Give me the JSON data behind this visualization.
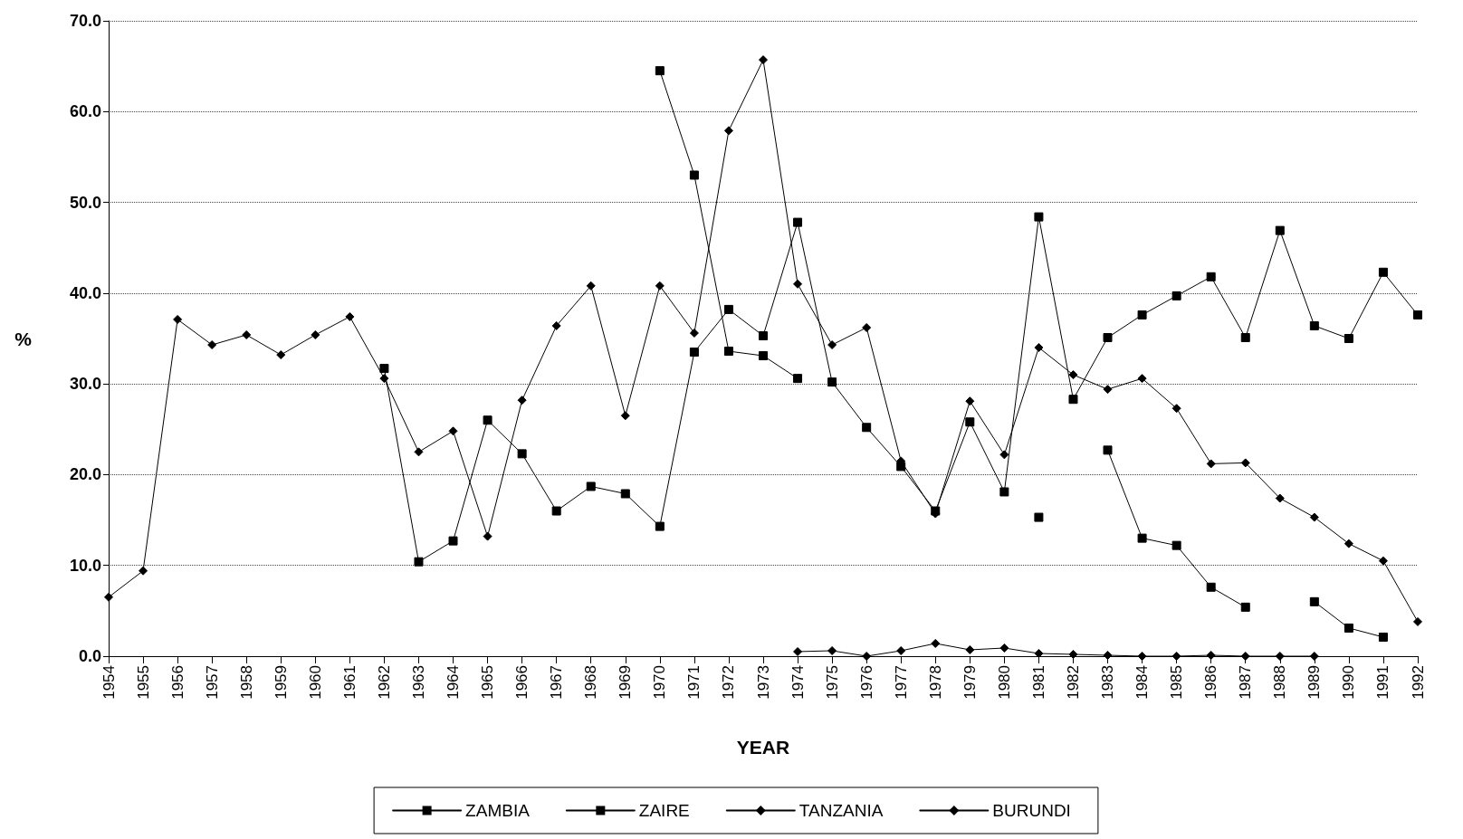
{
  "chart_data": {
    "type": "line",
    "xlabel": "YEAR",
    "ylabel": "%",
    "categories": [
      "1954",
      "1955",
      "1956",
      "1957",
      "1958",
      "1959",
      "1960",
      "1961",
      "1962",
      "1963",
      "1964",
      "1965",
      "1966",
      "1967",
      "1968",
      "1969",
      "1970",
      "1971",
      "1972",
      "1973",
      "1974",
      "1975",
      "1976",
      "1977",
      "1978",
      "1979",
      "1980",
      "1981",
      "1982",
      "1983",
      "1984",
      "1985",
      "1986",
      "1987",
      "1988",
      "1989",
      "1990",
      "1991",
      "1992"
    ],
    "series": [
      {
        "name": "ZAMBIA",
        "color": "#000000",
        "marker": "square",
        "values": [
          null,
          null,
          null,
          null,
          null,
          null,
          null,
          null,
          31.7,
          10.4,
          12.7,
          26.0,
          22.3,
          16.0,
          18.7,
          17.9,
          14.3,
          33.5,
          38.2,
          35.3,
          47.8,
          30.2,
          25.2,
          20.9,
          16.0,
          25.8,
          18.1,
          48.4,
          28.3,
          35.1,
          37.6,
          39.7,
          41.8,
          35.1,
          46.9,
          36.4,
          35.0,
          42.3,
          37.6
        ]
      },
      {
        "name": "ZAIRE",
        "color": "#000000",
        "marker": "square",
        "values": [
          null,
          null,
          null,
          null,
          null,
          null,
          null,
          null,
          null,
          null,
          null,
          null,
          null,
          null,
          null,
          null,
          64.5,
          53.0,
          33.6,
          33.1,
          30.6,
          null,
          null,
          null,
          null,
          null,
          null,
          15.3,
          null,
          22.7,
          13.0,
          12.2,
          7.6,
          5.4,
          null,
          6.0,
          3.1,
          2.1,
          null
        ]
      },
      {
        "name": "TANZANIA",
        "color": "#000000",
        "marker": "diamond",
        "values": [
          null,
          null,
          null,
          null,
          null,
          null,
          null,
          null,
          null,
          null,
          null,
          null,
          null,
          null,
          null,
          null,
          null,
          null,
          null,
          null,
          0.5,
          0.6,
          0.0,
          0.6,
          1.4,
          0.7,
          0.9,
          0.3,
          0.2,
          0.1,
          0.0,
          0.0,
          0.1,
          0.0,
          0.0,
          0.0,
          null,
          null,
          null
        ]
      },
      {
        "name": "BURUNDI",
        "color": "#000000",
        "marker": "diamond",
        "values": [
          6.5,
          9.4,
          37.1,
          34.3,
          35.4,
          33.2,
          35.4,
          37.4,
          30.6,
          22.5,
          24.8,
          13.2,
          28.2,
          36.4,
          40.8,
          26.5,
          40.8,
          35.6,
          57.9,
          65.7,
          41.0,
          34.3,
          36.2,
          21.5,
          15.7,
          28.1,
          22.2,
          34.0,
          31.0,
          29.4,
          30.6,
          27.3,
          21.2,
          21.3,
          17.4,
          15.3,
          12.4,
          10.5,
          3.8
        ]
      }
    ],
    "ylim": [
      0,
      70
    ],
    "yticks": [
      {
        "value": 0,
        "label": "0.0"
      },
      {
        "value": 10,
        "label": "10.0"
      },
      {
        "value": 20,
        "label": "20.0"
      },
      {
        "value": 30,
        "label": "30.0"
      },
      {
        "value": 40,
        "label": "40.0"
      },
      {
        "value": 50,
        "label": "50.0"
      },
      {
        "value": 60,
        "label": "60.0"
      },
      {
        "value": 70,
        "label": "70.0"
      }
    ],
    "grid": "y",
    "legend": "bottom",
    "line_style": "solid"
  }
}
